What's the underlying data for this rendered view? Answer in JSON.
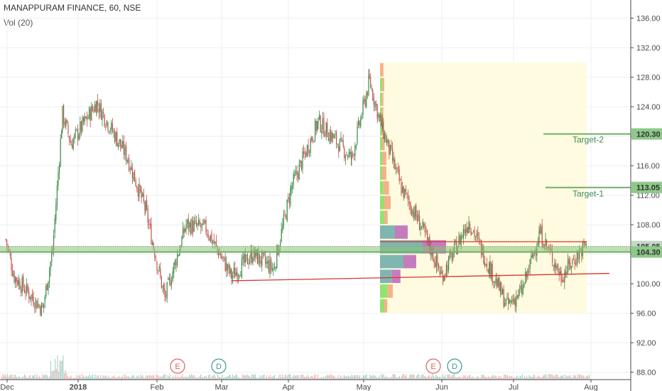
{
  "header": {
    "title": "MANAPPURAM FINANCE, 60, NSE",
    "indicator": "Vol (20)"
  },
  "colors": {
    "up": "#26a69a",
    "down": "#ef5350",
    "candle_up": "#3a8a48",
    "candle_down": "#c0504d",
    "support": "#8cc276",
    "trendline": "#d9362f",
    "target": "#6fae6a",
    "vp_box": "#fffbe0",
    "vp_up": "#7fb6b0",
    "vp_down": "#c77bbf",
    "vp_bright_up": "#94e26e",
    "vp_bright_down": "#f6b189",
    "earnings": "#e06060",
    "dividend": "#3a9a8a"
  },
  "chart_data": {
    "type": "candlestick",
    "title": "MANAPPURAM FINANCE, 60, NSE",
    "y_axis": {
      "ticks": [
        "136.00",
        "132.00",
        "128.00",
        "124.00",
        "120.00",
        "116.00",
        "112.00",
        "108.00",
        "104.00",
        "100.00",
        "96.00",
        "92.00",
        "88.00"
      ],
      "ylim": [
        87,
        137.5
      ],
      "position": "right"
    },
    "x_axis": {
      "ticks": [
        "Dec",
        "2018",
        "Feb",
        "Mar",
        "Apr",
        "May",
        "Jun",
        "Jul",
        "Aug"
      ],
      "bold_ticks": [
        "2018"
      ]
    },
    "price_path": [
      {
        "x": "Dec",
        "y": 106
      },
      {
        "x": "early Dec",
        "y": 101
      },
      {
        "x": "mid Dec",
        "y": 96.5
      },
      {
        "x": "late Dec",
        "y": 104.5
      },
      {
        "x": "end Dec",
        "y": 123
      },
      {
        "x": "early Jan",
        "y": 119
      },
      {
        "x": "mid Jan",
        "y": 124.5
      },
      {
        "x": "late Jan",
        "y": 117
      },
      {
        "x": "early Feb",
        "y": 110
      },
      {
        "x": "Feb",
        "y": 98
      },
      {
        "x": "mid Feb",
        "y": 108
      },
      {
        "x": "late Feb",
        "y": 107.5
      },
      {
        "x": "Mar",
        "y": 101
      },
      {
        "x": "mid Mar",
        "y": 104
      },
      {
        "x": "late Mar",
        "y": 102
      },
      {
        "x": "Apr",
        "y": 113
      },
      {
        "x": "mid Apr",
        "y": 122
      },
      {
        "x": "late Apr",
        "y": 117
      },
      {
        "x": "early May",
        "y": 127.5
      },
      {
        "x": "May",
        "y": 122
      },
      {
        "x": "mid May",
        "y": 113
      },
      {
        "x": "late May",
        "y": 108
      },
      {
        "x": "Jun",
        "y": 101
      },
      {
        "x": "mid Jun",
        "y": 108.5
      },
      {
        "x": "late Jun",
        "y": 102
      },
      {
        "x": "early Jul",
        "y": 97
      },
      {
        "x": "Jul",
        "y": 99
      },
      {
        "x": "mid Jul",
        "y": 107
      },
      {
        "x": "late Jul",
        "y": 101
      },
      {
        "x": "end Jul",
        "y": 105.5
      }
    ],
    "levels": [
      {
        "label": "105.05",
        "value": 105.05
      },
      {
        "label": "104.30",
        "value": 104.3
      },
      {
        "label": "Target-1",
        "price_label": "113.05",
        "value": 113.05
      },
      {
        "label": "Target-2",
        "price_label": "120.30",
        "value": 120.3
      }
    ],
    "support_band": {
      "from": 104.2,
      "to": 105.1
    },
    "trendline": {
      "from": {
        "x": "Mar",
        "y": 100.4
      },
      "to": {
        "x": "Aug",
        "y": 101.4
      }
    },
    "volume_profile": {
      "range": {
        "from": "May",
        "to": "end Jul"
      },
      "price_range": [
        96,
        130
      ],
      "rows": [
        {
          "price": 129,
          "up": 0.0,
          "down": 0.08
        },
        {
          "price": 127,
          "up": 0.05,
          "down": 0.05
        },
        {
          "price": 125,
          "up": 0.04,
          "down": 0.04
        },
        {
          "price": 123,
          "up": 0.04,
          "down": 0.04
        },
        {
          "price": 121,
          "up": 0.04,
          "down": 0.05
        },
        {
          "price": 119,
          "up": 0.05,
          "down": 0.06
        },
        {
          "price": 117,
          "up": 0.06,
          "down": 0.09
        },
        {
          "price": 115,
          "up": 0.05,
          "down": 0.1
        },
        {
          "price": 113,
          "up": 0.08,
          "down": 0.13
        },
        {
          "price": 111,
          "up": 0.1,
          "down": 0.15
        },
        {
          "price": 109,
          "up": 0.1,
          "down": 0.08
        },
        {
          "price": 107,
          "up": 0.35,
          "down": 0.3
        },
        {
          "price": 105,
          "up": 1.0,
          "down": 0.55
        },
        {
          "price": 103,
          "up": 0.55,
          "down": 0.3
        },
        {
          "price": 101,
          "up": 0.28,
          "down": 0.2
        },
        {
          "price": 99,
          "up": 0.18,
          "down": 0.12
        },
        {
          "price": 97,
          "up": 0.1,
          "down": 0.07
        }
      ]
    },
    "events": [
      {
        "type": "earnings",
        "label": "E",
        "x": "Feb"
      },
      {
        "type": "dividend",
        "label": "D",
        "x": "late Feb"
      },
      {
        "type": "earnings",
        "label": "E",
        "x": "late May"
      },
      {
        "type": "dividend",
        "label": "D",
        "x": "Jun"
      }
    ]
  }
}
